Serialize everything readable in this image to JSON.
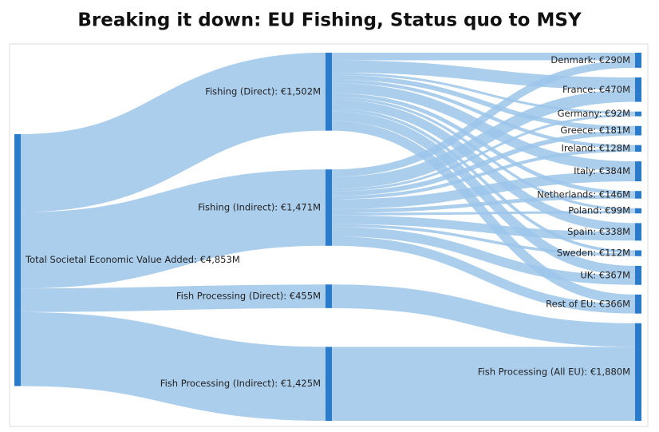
{
  "chart_data": {
    "type": "sankey",
    "title": "Breaking it down: EU Fishing, Status quo to MSY",
    "node_color": "#2a7ccb",
    "link_color": "#9cc6ea",
    "nodes": [
      {
        "label": "Total Societal Economic Value Added: €4,853M",
        "value": 4853
      },
      {
        "label": "Fishing (Direct): €1,502M",
        "value": 1502
      },
      {
        "label": "Fishing (Indirect): €1,471M",
        "value": 1471
      },
      {
        "label": "Fish Processing (Direct): €455M",
        "value": 455
      },
      {
        "label": "Fish Processing (Indirect): €1,425M",
        "value": 1425
      },
      {
        "label": "Denmark: €290M",
        "value": 290
      },
      {
        "label": "France: €470M",
        "value": 470
      },
      {
        "label": "Germany: €92M",
        "value": 92
      },
      {
        "label": "Greece: €181M",
        "value": 181
      },
      {
        "label": "Ireland: €128M",
        "value": 128
      },
      {
        "label": "Italy: €384M",
        "value": 384
      },
      {
        "label": "Netherlands: €146M",
        "value": 146
      },
      {
        "label": "Poland: €99M",
        "value": 99
      },
      {
        "label": "Spain: €338M",
        "value": 338
      },
      {
        "label": "Sweden: €112M",
        "value": 112
      },
      {
        "label": "UK: €367M",
        "value": 367
      },
      {
        "label": "Rest of EU: €366M",
        "value": 366
      },
      {
        "label": "Fish Processing (All EU): €1,880M",
        "value": 1880
      }
    ],
    "links": [
      {
        "source": 0,
        "target": 1,
        "value": 1502
      },
      {
        "source": 0,
        "target": 2,
        "value": 1471
      },
      {
        "source": 0,
        "target": 3,
        "value": 455
      },
      {
        "source": 0,
        "target": 4,
        "value": 1425
      },
      {
        "source": 1,
        "target": 5,
        "value": 147
      },
      {
        "source": 1,
        "target": 6,
        "value": 237
      },
      {
        "source": 1,
        "target": 7,
        "value": 46
      },
      {
        "source": 1,
        "target": 8,
        "value": 91
      },
      {
        "source": 1,
        "target": 9,
        "value": 65
      },
      {
        "source": 1,
        "target": 10,
        "value": 194
      },
      {
        "source": 1,
        "target": 11,
        "value": 74
      },
      {
        "source": 1,
        "target": 12,
        "value": 50
      },
      {
        "source": 1,
        "target": 13,
        "value": 171
      },
      {
        "source": 1,
        "target": 14,
        "value": 57
      },
      {
        "source": 1,
        "target": 15,
        "value": 185
      },
      {
        "source": 1,
        "target": 16,
        "value": 185
      },
      {
        "source": 2,
        "target": 5,
        "value": 143
      },
      {
        "source": 2,
        "target": 6,
        "value": 233
      },
      {
        "source": 2,
        "target": 7,
        "value": 46
      },
      {
        "source": 2,
        "target": 8,
        "value": 90
      },
      {
        "source": 2,
        "target": 9,
        "value": 63
      },
      {
        "source": 2,
        "target": 10,
        "value": 190
      },
      {
        "source": 2,
        "target": 11,
        "value": 72
      },
      {
        "source": 2,
        "target": 12,
        "value": 49
      },
      {
        "source": 2,
        "target": 13,
        "value": 167
      },
      {
        "source": 2,
        "target": 14,
        "value": 55
      },
      {
        "source": 2,
        "target": 15,
        "value": 182
      },
      {
        "source": 2,
        "target": 16,
        "value": 181
      },
      {
        "source": 3,
        "target": 17,
        "value": 455
      },
      {
        "source": 4,
        "target": 17,
        "value": 1425
      }
    ]
  }
}
